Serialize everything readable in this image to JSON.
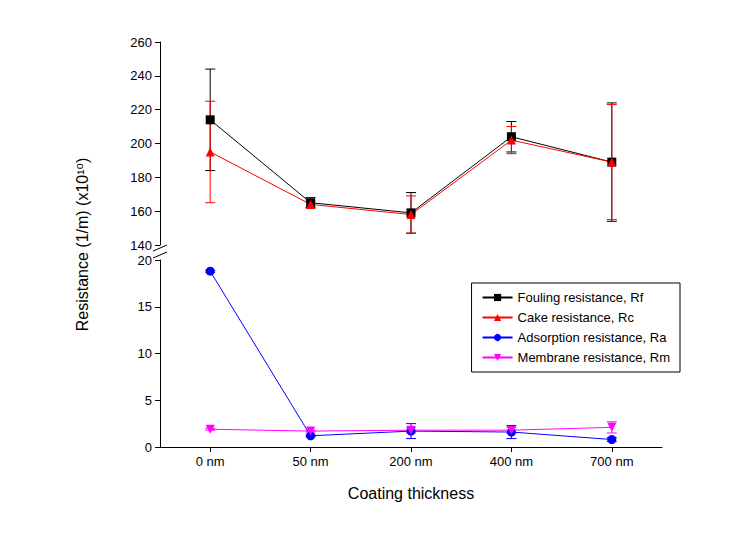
{
  "chart_data": [
    {
      "type": "line",
      "y_label": "Resistance (1/m) (x10¹⁰)",
      "categories": [
        "0 nm",
        "50 nm",
        "200 nm",
        "400 nm",
        "700 nm"
      ],
      "tick_labels": "y",
      "grid": false,
      "ylim": [
        140,
        260
      ],
      "yticks": [
        140,
        160,
        180,
        200,
        220,
        240,
        260
      ],
      "series": [
        {
          "name": "Fouling resistance, Rf",
          "color": "#000000",
          "marker": "square",
          "values": [
            214,
            165,
            159,
            204,
            189
          ],
          "errors": [
            30,
            3,
            12,
            9,
            35
          ]
        },
        {
          "name": "Cake resistance, Rc",
          "color": "#ff0000",
          "marker": "triangle",
          "values": [
            195,
            164,
            158,
            202,
            189
          ],
          "errors": [
            30,
            2,
            11,
            8,
            34
          ]
        }
      ]
    },
    {
      "type": "line",
      "x_label": "Coating thickness",
      "categories": [
        "0 nm",
        "50 nm",
        "200 nm",
        "400 nm",
        "700 nm"
      ],
      "grid": false,
      "legend": "upper right",
      "ylim": [
        0,
        20
      ],
      "yticks": [
        0,
        5,
        10,
        15,
        20
      ],
      "series": [
        {
          "name": "Adsorption resistance, Ra",
          "color": "#0000ff",
          "marker": "circle",
          "values": [
            18.8,
            1.2,
            1.7,
            1.6,
            0.8
          ],
          "errors": [
            0.1,
            0.1,
            0.8,
            0.7,
            0.2
          ]
        },
        {
          "name": "Membrane resistance, Rm",
          "color": "#ff00ff",
          "marker": "triangle-down",
          "values": [
            1.9,
            1.7,
            1.8,
            1.8,
            2.1
          ],
          "errors": [
            0.1,
            0.1,
            0.3,
            0.3,
            0.6
          ]
        }
      ]
    }
  ]
}
